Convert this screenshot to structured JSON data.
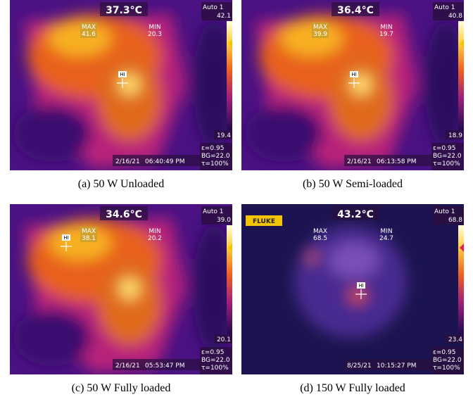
{
  "logo": "FLUKE",
  "panels": [
    {
      "caption": "(a) 50 W Unloaded",
      "temperature": "37.3°C",
      "mode": "Auto 1",
      "scale_max": "42.1",
      "scale_min": "19.4",
      "max_label": "MAX",
      "max_value": "41.6",
      "min_label": "MIN",
      "min_value": "20.3",
      "hi": "HI",
      "date": "2/16/21",
      "time": "06:40:49 PM",
      "emissivity": "ε=0.95",
      "background": "BG=22.0",
      "transmission": "τ=100%"
    },
    {
      "caption": "(b) 50 W Semi-loaded",
      "temperature": "36.4°C",
      "mode": "Auto 1",
      "scale_max": "40.8",
      "scale_min": "18.9",
      "max_label": "MAX",
      "max_value": "39.9",
      "min_label": "MIN",
      "min_value": "19.7",
      "hi": "HI",
      "date": "2/16/21",
      "time": "06:13:58 PM",
      "emissivity": "ε=0.95",
      "background": "BG=22.0",
      "transmission": "τ=100%"
    },
    {
      "caption": "(c) 50 W Fully loaded",
      "temperature": "34.6°C",
      "mode": "Auto 1",
      "scale_max": "39.0",
      "scale_min": "20.1",
      "max_label": "MAX",
      "max_value": "38.1",
      "min_label": "MIN",
      "min_value": "20.2",
      "hi": "HI",
      "date": "2/16/21",
      "time": "05:53:47 PM",
      "emissivity": "ε=0.95",
      "background": "BG=22.0",
      "transmission": "τ=100%"
    },
    {
      "caption": "(d) 150 W Fully loaded",
      "temperature": "43.2°C",
      "mode": "Auto 1",
      "scale_max": "68.8",
      "scale_min": "23.4",
      "max_label": "MAX",
      "max_value": "68.5",
      "min_label": "MIN",
      "min_value": "24.7",
      "hi": "HI",
      "date": "8/25/21",
      "time": "10:15:27 PM",
      "emissivity": "ε=0.95",
      "background": "BG=22.0",
      "transmission": "τ=100%"
    }
  ]
}
